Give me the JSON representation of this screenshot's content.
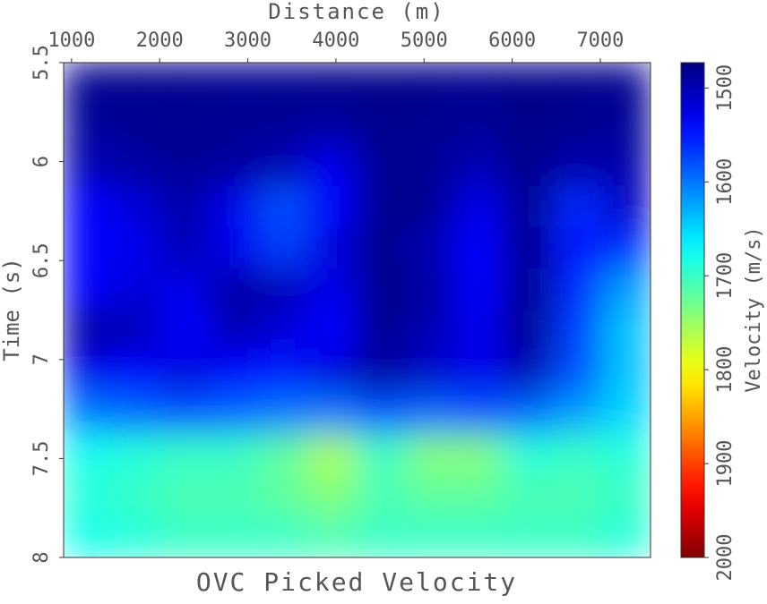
{
  "chart_data": {
    "type": "heatmap",
    "title": "OVC Picked Velocity",
    "x_label": "Distance (m)",
    "y_label": "Time (s)",
    "colorbar_label": "Velocity (m/s)",
    "colormap": "jet",
    "xlim": [
      910,
      7570
    ],
    "xticks": [
      1000,
      2000,
      3000,
      4000,
      5000,
      6000,
      7000
    ],
    "ylim": [
      5.5,
      8
    ],
    "yticks": [
      5.5,
      6,
      6.5,
      7,
      7.5,
      8
    ],
    "clim": [
      1473,
      2000
    ],
    "cticks": [
      1500,
      1600,
      1700,
      1800,
      1900,
      2000
    ],
    "z": [
      [
        1482,
        1480,
        1481,
        1483,
        1482,
        1480,
        1478,
        1480,
        1482,
        1478,
        1480,
        1482
      ],
      [
        1486,
        1484,
        1482,
        1484,
        1485,
        1488,
        1480,
        1482,
        1486,
        1478,
        1482,
        1486
      ],
      [
        1500,
        1490,
        1484,
        1488,
        1500,
        1530,
        1482,
        1484,
        1500,
        1480,
        1495,
        1495
      ],
      [
        1540,
        1520,
        1495,
        1530,
        1580,
        1540,
        1480,
        1482,
        1530,
        1480,
        1560,
        1510
      ],
      [
        1540,
        1530,
        1500,
        1530,
        1570,
        1520,
        1480,
        1500,
        1540,
        1480,
        1550,
        1560
      ],
      [
        1540,
        1520,
        1530,
        1490,
        1500,
        1530,
        1480,
        1490,
        1540,
        1480,
        1560,
        1620
      ],
      [
        1490,
        1500,
        1540,
        1500,
        1520,
        1540,
        1480,
        1500,
        1530,
        1480,
        1570,
        1640
      ],
      [
        1530,
        1540,
        1520,
        1540,
        1550,
        1520,
        1490,
        1510,
        1530,
        1500,
        1580,
        1640
      ],
      [
        1600,
        1590,
        1580,
        1590,
        1600,
        1600,
        1580,
        1590,
        1580,
        1590,
        1620,
        1650
      ],
      [
        1680,
        1690,
        1700,
        1700,
        1720,
        1760,
        1700,
        1740,
        1740,
        1690,
        1700,
        1690
      ],
      [
        1690,
        1700,
        1710,
        1710,
        1720,
        1740,
        1710,
        1720,
        1720,
        1710,
        1710,
        1700
      ],
      [
        1680,
        1690,
        1700,
        1700,
        1700,
        1710,
        1700,
        1700,
        1700,
        1700,
        1700,
        1690
      ]
    ]
  }
}
